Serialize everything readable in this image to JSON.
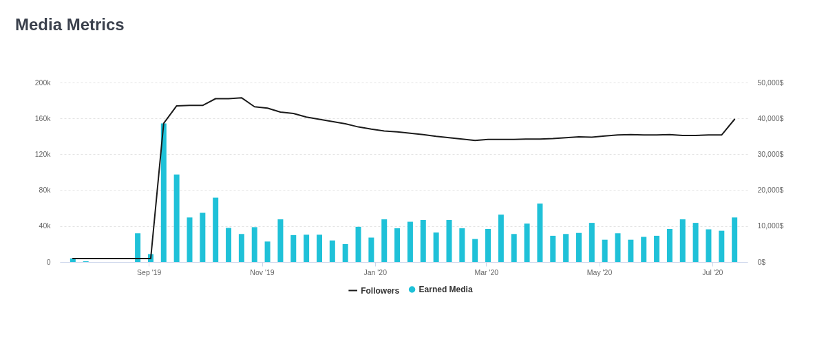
{
  "chart_data": {
    "type": "bar",
    "title": "Media Metrics",
    "x": [
      "2019-07-22",
      "2019-07-29",
      "2019-08-05",
      "2019-08-12",
      "2019-08-19",
      "2019-08-26",
      "2019-09-02",
      "2019-09-09",
      "2019-09-16",
      "2019-09-23",
      "2019-09-30",
      "2019-10-07",
      "2019-10-14",
      "2019-10-21",
      "2019-10-28",
      "2019-11-04",
      "2019-11-11",
      "2019-11-18",
      "2019-11-25",
      "2019-12-02",
      "2019-12-09",
      "2019-12-16",
      "2019-12-23",
      "2019-12-30",
      "2020-01-06",
      "2020-01-13",
      "2020-01-20",
      "2020-01-27",
      "2020-02-03",
      "2020-02-10",
      "2020-02-17",
      "2020-02-24",
      "2020-03-02",
      "2020-03-09",
      "2020-03-16",
      "2020-03-23",
      "2020-03-30",
      "2020-04-06",
      "2020-04-13",
      "2020-04-20",
      "2020-04-27",
      "2020-05-04",
      "2020-05-11",
      "2020-05-18",
      "2020-05-25",
      "2020-06-01",
      "2020-06-08",
      "2020-06-15",
      "2020-06-22",
      "2020-06-29",
      "2020-07-06",
      "2020-07-13"
    ],
    "series": [
      {
        "name": "Followers",
        "type": "line",
        "color": "#1b1b1b",
        "values": [
          3800,
          3800,
          3800,
          3800,
          3800,
          3800,
          3800,
          154500,
          174000,
          174500,
          174500,
          182000,
          182000,
          183000,
          173000,
          171500,
          167000,
          165500,
          161500,
          159000,
          156500,
          154000,
          150500,
          148000,
          146000,
          145000,
          143500,
          142000,
          140000,
          138500,
          137000,
          135500,
          136500,
          136500,
          136500,
          137000,
          137000,
          137500,
          138500,
          139500,
          139000,
          140500,
          141500,
          142000,
          141500,
          141500,
          142000,
          141000,
          141000,
          141500,
          141500,
          159000
        ]
      },
      {
        "name": "Earned Media",
        "axis": "y2",
        "color": "#1fc1d8",
        "values": [
          1000,
          200,
          null,
          null,
          null,
          8000,
          2200,
          38600,
          24400,
          12400,
          13700,
          17900,
          9500,
          7800,
          9700,
          5700,
          11900,
          7500,
          7600,
          7600,
          6000,
          5000,
          9800,
          6800,
          11900,
          9400,
          11200,
          11700,
          8200,
          11700,
          9400,
          6400,
          9200,
          13200,
          7800,
          10700,
          16300,
          7300,
          7800,
          8100,
          10900,
          6200,
          8000,
          6200,
          7000,
          7300,
          9200,
          11900,
          10900,
          9100,
          8700,
          12400
        ]
      }
    ],
    "xlim": [
      "2019-07-15",
      "2020-07-20"
    ],
    "xticks": [
      {
        "value": "2019-09-01",
        "label": "Sep '19"
      },
      {
        "value": "2019-11-01",
        "label": "Nov '19"
      },
      {
        "value": "2020-01-01",
        "label": "Jan '20"
      },
      {
        "value": "2020-03-01",
        "label": "Mar '20"
      },
      {
        "value": "2020-05-01",
        "label": "May '20"
      },
      {
        "value": "2020-07-01",
        "label": "Jul '20"
      }
    ],
    "ylim": [
      0,
      200000
    ],
    "yticks": [
      {
        "value": 0,
        "label": "0"
      },
      {
        "value": 40000,
        "label": "40k"
      },
      {
        "value": 80000,
        "label": "80k"
      },
      {
        "value": 120000,
        "label": "120k"
      },
      {
        "value": 160000,
        "label": "160k"
      },
      {
        "value": 200000,
        "label": "200k"
      }
    ],
    "y2lim": [
      0,
      50000
    ],
    "y2ticks": [
      {
        "value": 0,
        "label": "0$"
      },
      {
        "value": 10000,
        "label": "10,000$"
      },
      {
        "value": 20000,
        "label": "20,000$"
      },
      {
        "value": 30000,
        "label": "30,000$"
      },
      {
        "value": 40000,
        "label": "40,000$"
      },
      {
        "value": 50000,
        "label": "50,000$"
      }
    ],
    "grid": "y",
    "legend": "bottom"
  }
}
